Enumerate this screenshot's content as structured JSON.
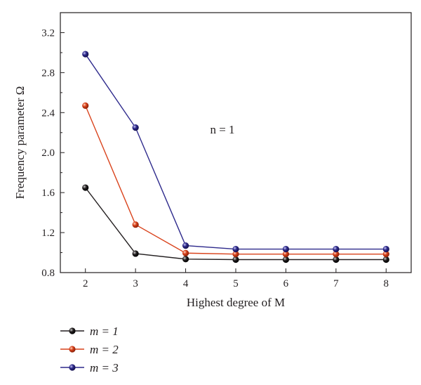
{
  "chart_data": {
    "type": "line",
    "x": [
      2,
      3,
      4,
      5,
      6,
      7,
      8
    ],
    "xlabel": "Highest degree of M",
    "ylabel": "Frequency parameter Ω",
    "xlim": [
      1.5,
      8.5
    ],
    "ylim": [
      0.8,
      3.4
    ],
    "xticks": [
      "2",
      "3",
      "4",
      "5",
      "6",
      "7",
      "8"
    ],
    "yticks": [
      "0.8",
      "1.2",
      "1.6",
      "2.0",
      "2.4",
      "2.8",
      "3.2"
    ],
    "annotation": "n = 1",
    "grid": false,
    "legend_position": "bottom-left, below plot",
    "series": [
      {
        "name": "m = 1",
        "color": "#231f20",
        "values": [
          1.65,
          0.99,
          0.935,
          0.93,
          0.93,
          0.93,
          0.93
        ]
      },
      {
        "name": "m = 2",
        "color": "#d9421b",
        "values": [
          2.47,
          1.28,
          0.995,
          0.985,
          0.985,
          0.985,
          0.985
        ]
      },
      {
        "name": "m = 3",
        "color": "#2e2a8c",
        "values": [
          2.985,
          2.25,
          1.07,
          1.035,
          1.035,
          1.035,
          1.035
        ]
      }
    ]
  }
}
